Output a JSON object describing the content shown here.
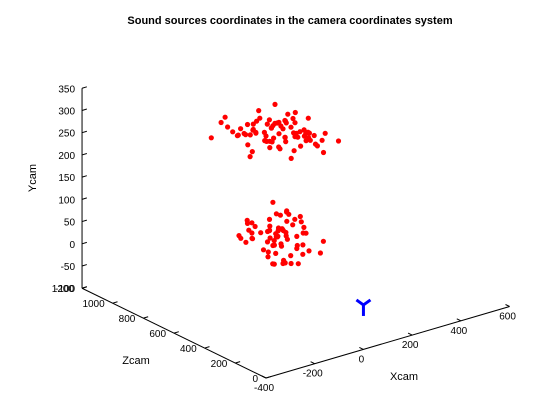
{
  "chart_data": {
    "type": "scatter",
    "title": "Sound sources coordinates in the camera coordinates system",
    "xlabel": "Xcam",
    "ylabel": "Ycam",
    "zlabel": "Zcam",
    "projection": "3d",
    "grid": false,
    "colors": {
      "points": "#ff0000",
      "camera_marker": "#0000ff"
    },
    "axes": {
      "x": {
        "range": [
          -400,
          600
        ],
        "ticks": [
          "-400",
          "-200",
          "0",
          "200",
          "400",
          "600"
        ]
      },
      "y": {
        "range": [
          -100,
          350
        ],
        "ticks": [
          "-100",
          "-50",
          "0",
          "50",
          "100",
          "150",
          "200",
          "250",
          "300",
          "350"
        ]
      },
      "z": {
        "range": [
          0,
          1200
        ],
        "ticks": [
          "0",
          "200",
          "400",
          "600",
          "800",
          "1000",
          "1200"
        ]
      }
    },
    "camera_marker": {
      "x": 0,
      "y": 0,
      "z": 0,
      "symbol": "tripod"
    },
    "point_clusters": [
      {
        "y": 285,
        "count": 80,
        "x_spread": 300,
        "z_center": 600,
        "z_spread": 450,
        "y_spread": 55
      },
      {
        "y": 60,
        "count": 70,
        "x_spread": 220,
        "z_center": 560,
        "z_spread": 380,
        "y_spread": 70
      }
    ]
  }
}
